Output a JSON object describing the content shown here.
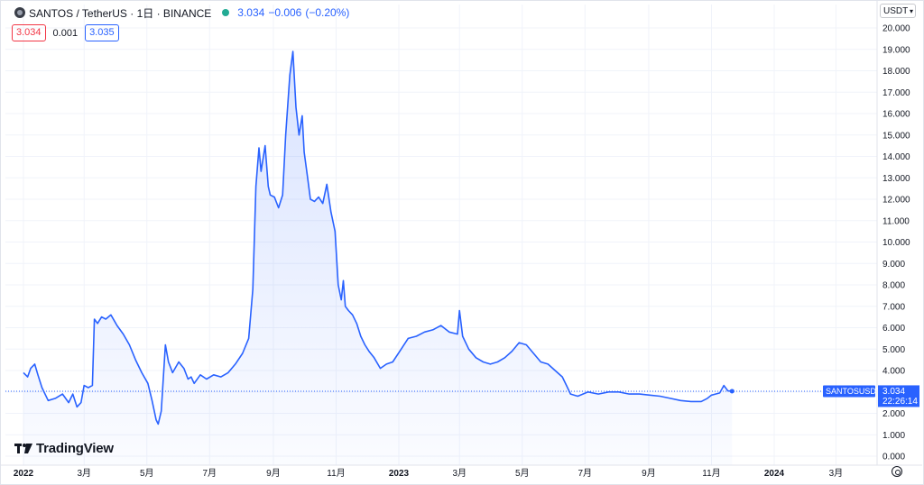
{
  "header": {
    "symbol": "SANTOS / TetherUS · 1日 · BINANCE",
    "last": "3.034",
    "change": "−0.006",
    "change_pct": "(−0.20%)",
    "bid": "3.034",
    "spread": "0.001",
    "ask": "3.035",
    "status_color": "#22ab94"
  },
  "currency_selector": "USDT",
  "currency_chevron": "▾",
  "watermark": "TradingView",
  "last_price_label": {
    "ticker": "SANTOSUSDT",
    "price": "3.034",
    "countdown": "22:26:14"
  },
  "colors": {
    "line": "#2962ff",
    "axis_label_bg": "#2962ff"
  },
  "chart_data": {
    "type": "area",
    "x_ticks": [
      "2022",
      "3月",
      "5月",
      "7月",
      "9月",
      "11月",
      "2023",
      "3月",
      "5月",
      "7月",
      "9月",
      "11月",
      "2024",
      "3月"
    ],
    "x_tick_bold": [
      true,
      false,
      false,
      false,
      false,
      false,
      true,
      false,
      false,
      false,
      false,
      false,
      true,
      false
    ],
    "ylim": [
      0,
      20
    ],
    "y_ticks": [
      "0.000",
      "1.000",
      "2.000",
      "3.000",
      "4.000",
      "5.000",
      "6.000",
      "7.000",
      "8.000",
      "9.000",
      "10.000",
      "11.000",
      "12.000",
      "13.000",
      "14.000",
      "15.000",
      "16.000",
      "17.000",
      "18.000",
      "19.000",
      "20.000"
    ],
    "grid": true,
    "last_value": 3.034,
    "series": [
      {
        "x": [
          "2022-01-01",
          "2022-01-05",
          "2022-01-08",
          "2022-01-12",
          "2022-01-15",
          "2022-01-19",
          "2022-01-25",
          "2022-02-01",
          "2022-02-08",
          "2022-02-14",
          "2022-02-18",
          "2022-02-22",
          "2022-02-26",
          "2022-03-01",
          "2022-03-05",
          "2022-03-09",
          "2022-03-11",
          "2022-03-14",
          "2022-03-18",
          "2022-03-22",
          "2022-03-27",
          "2022-04-02",
          "2022-04-08",
          "2022-04-14",
          "2022-04-20",
          "2022-04-26",
          "2022-05-02",
          "2022-05-06",
          "2022-05-10",
          "2022-05-12",
          "2022-05-15",
          "2022-05-19",
          "2022-05-22",
          "2022-05-26",
          "2022-06-01",
          "2022-06-06",
          "2022-06-10",
          "2022-06-13",
          "2022-06-16",
          "2022-06-22",
          "2022-06-28",
          "2022-07-05",
          "2022-07-12",
          "2022-07-19",
          "2022-07-26",
          "2022-08-02",
          "2022-08-08",
          "2022-08-12",
          "2022-08-15",
          "2022-08-18",
          "2022-08-20",
          "2022-08-24",
          "2022-08-27",
          "2022-08-29",
          "2022-09-02",
          "2022-09-06",
          "2022-09-10",
          "2022-09-13",
          "2022-09-17",
          "2022-09-20",
          "2022-09-23",
          "2022-09-26",
          "2022-09-29",
          "2022-10-01",
          "2022-10-04",
          "2022-10-07",
          "2022-10-11",
          "2022-10-15",
          "2022-10-19",
          "2022-10-23",
          "2022-10-27",
          "2022-10-31",
          "2022-11-03",
          "2022-11-06",
          "2022-11-08",
          "2022-11-10",
          "2022-11-13",
          "2022-11-17",
          "2022-11-21",
          "2022-11-25",
          "2022-11-29",
          "2022-12-03",
          "2022-12-08",
          "2022-12-14",
          "2022-12-20",
          "2022-12-26",
          "2023-01-02",
          "2023-01-10",
          "2023-01-18",
          "2023-01-26",
          "2023-02-03",
          "2023-02-11",
          "2023-02-19",
          "2023-02-27",
          "2023-03-01",
          "2023-03-04",
          "2023-03-10",
          "2023-03-17",
          "2023-03-24",
          "2023-03-31",
          "2023-04-07",
          "2023-04-14",
          "2023-04-21",
          "2023-04-28",
          "2023-05-05",
          "2023-05-12",
          "2023-05-19",
          "2023-05-26",
          "2023-06-02",
          "2023-06-09",
          "2023-06-13",
          "2023-06-17",
          "2023-06-24",
          "2023-07-04",
          "2023-07-14",
          "2023-07-24",
          "2023-08-03",
          "2023-08-13",
          "2023-08-23",
          "2023-09-02",
          "2023-09-12",
          "2023-09-22",
          "2023-10-02",
          "2023-10-12",
          "2023-10-22",
          "2023-10-28",
          "2023-11-01",
          "2023-11-05",
          "2023-11-09",
          "2023-11-13",
          "2023-11-17",
          "2023-11-21"
        ],
        "y": [
          3.9,
          3.7,
          4.1,
          4.3,
          3.8,
          3.2,
          2.6,
          2.7,
          2.9,
          2.5,
          2.9,
          2.3,
          2.5,
          3.3,
          3.2,
          3.3,
          6.4,
          6.2,
          6.5,
          6.4,
          6.6,
          6.1,
          5.7,
          5.2,
          4.5,
          3.9,
          3.4,
          2.6,
          1.7,
          1.5,
          2.1,
          5.2,
          4.4,
          3.9,
          4.4,
          4.1,
          3.6,
          3.7,
          3.4,
          3.8,
          3.6,
          3.8,
          3.7,
          3.9,
          4.3,
          4.8,
          5.5,
          7.8,
          12.6,
          14.4,
          13.3,
          14.5,
          12.6,
          12.2,
          12.1,
          11.6,
          12.2,
          15.0,
          17.8,
          18.9,
          16.3,
          15.0,
          15.9,
          14.2,
          13.1,
          12.0,
          11.9,
          12.1,
          11.8,
          12.7,
          11.4,
          10.5,
          8.0,
          7.3,
          8.2,
          7.0,
          6.8,
          6.6,
          6.2,
          5.6,
          5.2,
          4.9,
          4.6,
          4.1,
          4.3,
          4.4,
          4.9,
          5.5,
          5.6,
          5.8,
          5.9,
          6.1,
          5.8,
          5.7,
          6.8,
          5.6,
          5.0,
          4.6,
          4.4,
          4.3,
          4.4,
          4.6,
          4.9,
          5.3,
          5.2,
          4.8,
          4.4,
          4.3,
          4.0,
          3.7,
          3.3,
          2.9,
          2.8,
          3.0,
          2.9,
          3.0,
          3.0,
          2.9,
          2.9,
          2.85,
          2.8,
          2.7,
          2.6,
          2.55,
          2.55,
          2.7,
          2.85,
          2.9,
          2.95,
          3.3,
          3.05,
          3.034
        ]
      }
    ]
  }
}
